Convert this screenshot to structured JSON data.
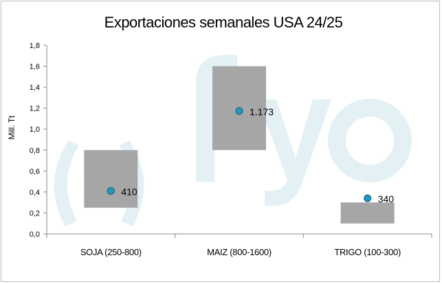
{
  "chart_data": {
    "type": "floating-bar-with-points",
    "title": "Exportaciones semanales USA 24/25",
    "xlabel": "",
    "ylabel": "Mill. Tt",
    "ylim": [
      0,
      1.8
    ],
    "yticks": [
      "0,0",
      "0,2",
      "0,4",
      "0,6",
      "0,8",
      "1,0",
      "1,2",
      "1,4",
      "1,6",
      "1,8"
    ],
    "categories": [
      "SOJA (250-800)",
      "MAIZ (800-1600)",
      "TRIGO (100-300)"
    ],
    "ranges": [
      [
        0.25,
        0.8
      ],
      [
        0.8,
        1.6
      ],
      [
        0.1,
        0.3
      ]
    ],
    "points": [
      0.41,
      1.173,
      0.34
    ],
    "point_labels": [
      "410",
      "1.173",
      "340"
    ],
    "grid": false,
    "colors": {
      "bar": "#a6a6a6",
      "point": "#1f9bbf",
      "point_stroke": "#1a5a70",
      "watermark": "#e3f1f5"
    }
  }
}
